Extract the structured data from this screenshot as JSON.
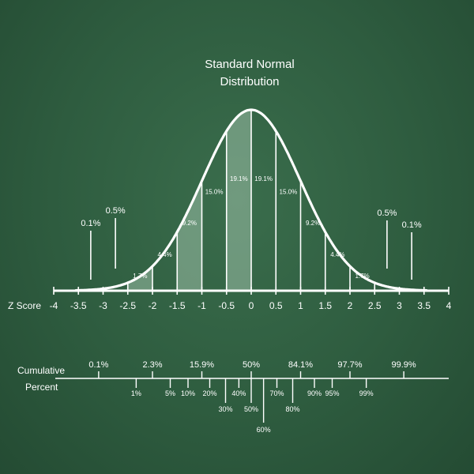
{
  "chart_data": [
    {
      "type": "area",
      "title_lines": [
        "Standard Normal",
        "Distribution"
      ],
      "xlabel": "Z Score",
      "xlim": [
        -4,
        4
      ],
      "x_ticks": [
        -4,
        -3.5,
        -3,
        -2.5,
        -2,
        -1.5,
        -1,
        -0.5,
        0,
        0.5,
        1,
        1.5,
        2,
        2.5,
        3,
        3.5,
        4
      ],
      "x_tick_labels": [
        "-4",
        "-3.5",
        "-3",
        "-2.5",
        "-2",
        "-1.5",
        "-1",
        "-0.5",
        "0",
        "0.5",
        "1",
        "1.5",
        "2",
        "2.5",
        "3",
        "3.5",
        "4"
      ],
      "curve": "standard normal density",
      "band_edges": [
        -3.5,
        -3,
        -2.5,
        -2,
        -1.5,
        -1,
        -0.5,
        0,
        0.5,
        1,
        1.5,
        2,
        2.5,
        3,
        3.5
      ],
      "band_percent_labels": [
        {
          "x_from": -2.5,
          "x_to": -2,
          "label": "1.7%"
        },
        {
          "x_from": -2,
          "x_to": -1.5,
          "label": "4.4%"
        },
        {
          "x_from": -1.5,
          "x_to": -1,
          "label": "9.2%"
        },
        {
          "x_from": -1,
          "x_to": -0.5,
          "label": "15.0%"
        },
        {
          "x_from": -0.5,
          "x_to": 0,
          "label": "19.1%"
        },
        {
          "x_from": 0,
          "x_to": 0.5,
          "label": "19.1%"
        },
        {
          "x_from": 0.5,
          "x_to": 1,
          "label": "15.0%"
        },
        {
          "x_from": 1,
          "x_to": 1.5,
          "label": "9.2%"
        },
        {
          "x_from": 1.5,
          "x_to": 2,
          "label": "4.4%"
        },
        {
          "x_from": 2,
          "x_to": 2.5,
          "label": "1.7%"
        }
      ],
      "shaded_bands": [
        [
          -2.5,
          -2
        ],
        [
          -1.5,
          -1
        ],
        [
          -0.5,
          0
        ]
      ],
      "tail_labels": [
        {
          "x": -3.25,
          "label": "0.1%"
        },
        {
          "x": -2.75,
          "label": "0.5%"
        },
        {
          "x": 2.75,
          "label": "0.5%"
        },
        {
          "x": 3.25,
          "label": "0.1%"
        }
      ]
    },
    {
      "type": "scale",
      "label_lines": [
        "Cumulative",
        "Percent"
      ],
      "major_marks": [
        {
          "z": -3.09,
          "label": "0.1%"
        },
        {
          "z": -2.0,
          "label": "2.3%"
        },
        {
          "z": -1.0,
          "label": "15.9%"
        },
        {
          "z": 0.0,
          "label": "50%"
        },
        {
          "z": 1.0,
          "label": "84.1%"
        },
        {
          "z": 2.0,
          "label": "97.7%"
        },
        {
          "z": 3.09,
          "label": "99.9%"
        }
      ],
      "minor_marks": [
        {
          "z": -2.33,
          "label": "1%",
          "level": 0
        },
        {
          "z": -1.64,
          "label": "5%",
          "level": 0
        },
        {
          "z": -1.28,
          "label": "10%",
          "level": 0
        },
        {
          "z": -0.84,
          "label": "20%",
          "level": 0
        },
        {
          "z": -0.52,
          "label": "30%",
          "level": 1
        },
        {
          "z": -0.25,
          "label": "40%",
          "level": 0
        },
        {
          "z": 0.0,
          "label": "50%",
          "level": 1
        },
        {
          "z": 0.25,
          "label": "60%",
          "level": 2
        },
        {
          "z": 0.52,
          "label": "70%",
          "level": 0
        },
        {
          "z": 0.84,
          "label": "80%",
          "level": 1
        },
        {
          "z": 1.28,
          "label": "90%",
          "level": 0
        },
        {
          "z": 1.64,
          "label": "95%",
          "level": 0
        },
        {
          "z": 2.33,
          "label": "99%",
          "level": 0
        }
      ]
    }
  ],
  "colors": {
    "board": "#2f5e40",
    "chalk": "#ffffff",
    "shade": "#9cbfa8"
  }
}
